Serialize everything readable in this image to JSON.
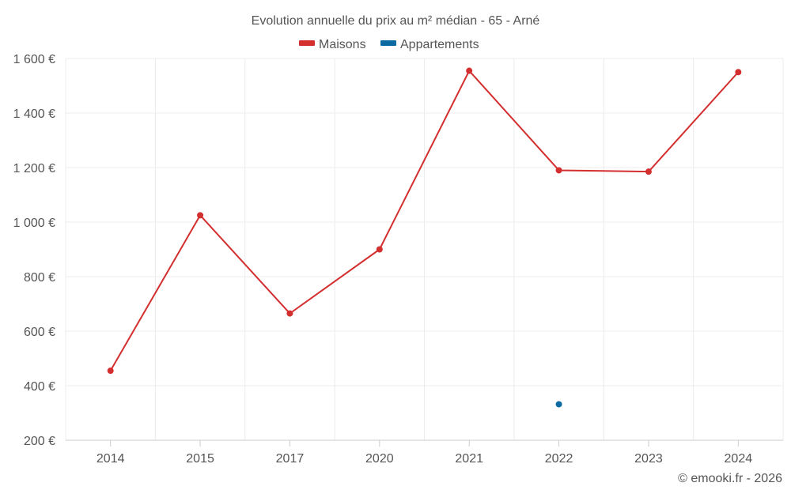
{
  "chart_data": {
    "type": "line",
    "title": "Evolution annuelle du prix au m² médian - 65 - Arné",
    "categories": [
      "2014",
      "2015",
      "2017",
      "2020",
      "2021",
      "2022",
      "2023",
      "2024"
    ],
    "series": [
      {
        "name": "Maisons",
        "color": "#d32f2f",
        "values": [
          455,
          1025,
          665,
          900,
          1555,
          1190,
          1185,
          1550
        ]
      },
      {
        "name": "Appartements",
        "color": "#0a6aa1",
        "values": [
          null,
          null,
          null,
          null,
          null,
          332,
          null,
          null
        ]
      }
    ],
    "ylim": [
      200,
      1600
    ],
    "yticks": [
      200,
      400,
      600,
      800,
      1000,
      1200,
      1400,
      1600
    ],
    "ytick_labels": [
      "200 €",
      "400 €",
      "600 €",
      "800 €",
      "1 000 €",
      "1 200 €",
      "1 400 €",
      "1 600 €"
    ],
    "xlabel": "",
    "ylabel": "",
    "grid": true,
    "legend_position": "top-center"
  },
  "credit": "© emooki.fr - 2026"
}
